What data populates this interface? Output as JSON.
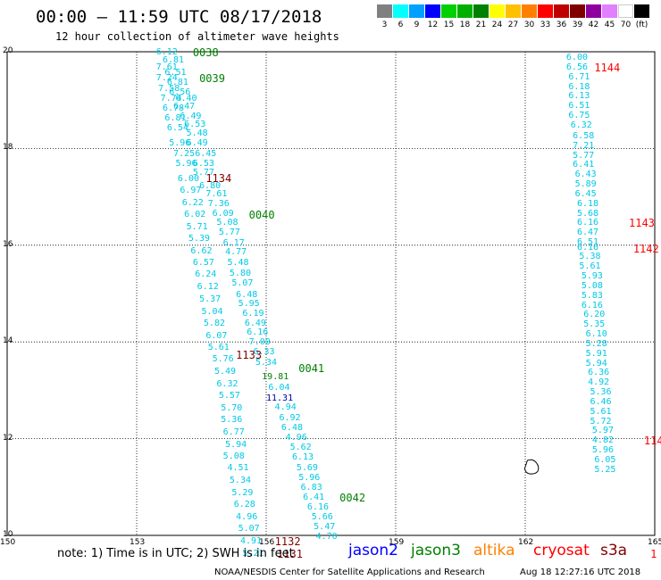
{
  "header": {
    "title": "00:00 — 11:59 UTC 08/17/2018",
    "subtitle": "12 hour collection of altimeter wave heights"
  },
  "colorbar": {
    "swatches": [
      "#808080",
      "#00ffff",
      "#00a0ff",
      "#0000ff",
      "#00d000",
      "#00b000",
      "#008000",
      "#ffff00",
      "#ffc000",
      "#ff8000",
      "#ff0000",
      "#c00000",
      "#800000",
      "#9000a0",
      "#e080ff",
      "#ffffff",
      "#000000"
    ],
    "labels": [
      "3",
      "6",
      "9",
      "12",
      "15",
      "18",
      "21",
      "24",
      "27",
      "30",
      "33",
      "36",
      "39",
      "42",
      "45",
      "70",
      "(ft)"
    ]
  },
  "axes": {
    "y_ticks": [
      "20",
      "18",
      "16",
      "14",
      "12",
      "10"
    ],
    "x_ticks": [
      "150",
      "153",
      "156",
      "159",
      "162",
      "165"
    ],
    "lat_range": [
      10,
      20
    ],
    "lon_range": [
      150,
      165
    ]
  },
  "colors": {
    "grid": "#000000",
    "point_value": "#00c8e6",
    "jason2": "#0000ff",
    "jason3": "#008000",
    "altika": "#ff8000",
    "cryosat": "#ff0000",
    "s3a": "#800000"
  },
  "tracks": [
    {
      "points": [
        {
          "v": "6.12",
          "lon": 153.45,
          "lat": 19.98
        },
        {
          "v": "6.81",
          "lon": 153.6,
          "lat": 19.82
        },
        {
          "v": "7.61",
          "lon": 153.45,
          "lat": 19.67
        },
        {
          "v": "6.51",
          "lon": 153.65,
          "lat": 19.55
        },
        {
          "v": "7.24",
          "lon": 153.45,
          "lat": 19.45
        },
        {
          "v": "6.81",
          "lon": 153.7,
          "lat": 19.35
        },
        {
          "v": "7.58",
          "lon": 153.5,
          "lat": 19.23
        },
        {
          "v": "6.56",
          "lon": 153.75,
          "lat": 19.15
        },
        {
          "v": "7.74",
          "lon": 153.55,
          "lat": 19.03
        },
        {
          "v": "6.40",
          "lon": 153.9,
          "lat": 19.03
        },
        {
          "v": "6.78",
          "lon": 153.6,
          "lat": 18.82
        },
        {
          "v": "6.47",
          "lon": 153.85,
          "lat": 18.85
        },
        {
          "v": "6.81",
          "lon": 153.65,
          "lat": 18.62
        },
        {
          "v": "6.49",
          "lon": 154.0,
          "lat": 18.65
        },
        {
          "v": "6.54",
          "lon": 153.7,
          "lat": 18.42
        },
        {
          "v": "6.53",
          "lon": 154.1,
          "lat": 18.48
        },
        {
          "v": "5.48",
          "lon": 154.15,
          "lat": 18.3
        },
        {
          "v": "5.96",
          "lon": 153.75,
          "lat": 18.1
        },
        {
          "v": "6.49",
          "lon": 154.15,
          "lat": 18.1
        },
        {
          "v": "7.25",
          "lon": 153.85,
          "lat": 17.88
        },
        {
          "v": "6.45",
          "lon": 154.35,
          "lat": 17.88
        },
        {
          "v": "5.96",
          "lon": 153.9,
          "lat": 17.67
        },
        {
          "v": "6.53",
          "lon": 154.3,
          "lat": 17.68
        },
        {
          "v": "6.00",
          "lon": 153.95,
          "lat": 17.37
        },
        {
          "v": "5.77",
          "lon": 154.3,
          "lat": 17.5
        },
        {
          "v": "6.97",
          "lon": 154.0,
          "lat": 17.13
        },
        {
          "v": "6.80",
          "lon": 154.45,
          "lat": 17.22
        },
        {
          "v": "6.22",
          "lon": 154.05,
          "lat": 16.87
        },
        {
          "v": "7.61",
          "lon": 154.6,
          "lat": 17.04
        },
        {
          "v": "7.36",
          "lon": 154.65,
          "lat": 16.85
        },
        {
          "v": "6.02",
          "lon": 154.1,
          "lat": 16.62
        },
        {
          "v": "6.09",
          "lon": 154.75,
          "lat": 16.65
        },
        {
          "v": "5.71",
          "lon": 154.15,
          "lat": 16.37
        },
        {
          "v": "5.08",
          "lon": 154.85,
          "lat": 16.45
        },
        {
          "v": "5.39",
          "lon": 154.2,
          "lat": 16.12
        },
        {
          "v": "5.77",
          "lon": 154.9,
          "lat": 16.25
        },
        {
          "v": "6.17",
          "lon": 155.0,
          "lat": 16.03
        },
        {
          "v": "6.62",
          "lon": 154.25,
          "lat": 15.87
        },
        {
          "v": "4.77",
          "lon": 155.05,
          "lat": 15.85
        },
        {
          "v": "6.57",
          "lon": 154.3,
          "lat": 15.63
        },
        {
          "v": "5.48",
          "lon": 155.1,
          "lat": 15.63
        },
        {
          "v": "6.24",
          "lon": 154.35,
          "lat": 15.38
        },
        {
          "v": "5.80",
          "lon": 155.15,
          "lat": 15.4
        },
        {
          "v": "6.12",
          "lon": 154.4,
          "lat": 15.13
        },
        {
          "v": "5.07",
          "lon": 155.2,
          "lat": 15.2
        },
        {
          "v": "5.37",
          "lon": 154.45,
          "lat": 14.88
        },
        {
          "v": "6.48",
          "lon": 155.3,
          "lat": 14.97
        },
        {
          "v": "5.04",
          "lon": 154.5,
          "lat": 14.62
        },
        {
          "v": "5.95",
          "lon": 155.35,
          "lat": 14.77
        },
        {
          "v": "6.19",
          "lon": 155.45,
          "lat": 14.57
        },
        {
          "v": "5.82",
          "lon": 154.55,
          "lat": 14.37
        },
        {
          "v": "6.49",
          "lon": 155.5,
          "lat": 14.37
        },
        {
          "v": "6.07",
          "lon": 154.6,
          "lat": 14.12
        },
        {
          "v": "6.16",
          "lon": 155.55,
          "lat": 14.18
        },
        {
          "v": "7.00",
          "lon": 155.6,
          "lat": 13.98
        },
        {
          "v": "5.61",
          "lon": 154.65,
          "lat": 13.87
        },
        {
          "v": "6.33",
          "lon": 155.7,
          "lat": 13.78
        },
        {
          "v": "5.76",
          "lon": 154.75,
          "lat": 13.63
        },
        {
          "v": "5.34",
          "lon": 155.75,
          "lat": 13.57
        },
        {
          "v": "5.49",
          "lon": 154.8,
          "lat": 13.38
        },
        {
          "v": "6.32",
          "lon": 154.85,
          "lat": 13.12
        },
        {
          "v": "6.04",
          "lon": 156.05,
          "lat": 13.05
        },
        {
          "v": "5.57",
          "lon": 154.9,
          "lat": 12.87
        },
        {
          "v": "5.70",
          "lon": 154.95,
          "lat": 12.62
        },
        {
          "v": "4.94",
          "lon": 156.2,
          "lat": 12.63
        },
        {
          "v": "5.36",
          "lon": 154.95,
          "lat": 12.38
        },
        {
          "v": "6.92",
          "lon": 156.3,
          "lat": 12.42
        },
        {
          "v": "6.77",
          "lon": 155.0,
          "lat": 12.12
        },
        {
          "v": "6.48",
          "lon": 156.35,
          "lat": 12.22
        },
        {
          "v": "5.94",
          "lon": 155.05,
          "lat": 11.87
        },
        {
          "v": "4.96",
          "lon": 156.45,
          "lat": 12.02
        },
        {
          "v": "5.08",
          "lon": 155.0,
          "lat": 11.63
        },
        {
          "v": "5.62",
          "lon": 156.55,
          "lat": 11.8
        },
        {
          "v": "4.51",
          "lon": 155.1,
          "lat": 11.38
        },
        {
          "v": "6.13",
          "lon": 156.6,
          "lat": 11.6
        },
        {
          "v": "5.34",
          "lon": 155.15,
          "lat": 11.12
        },
        {
          "v": "5.69",
          "lon": 156.7,
          "lat": 11.38
        },
        {
          "v": "5.96",
          "lon": 156.75,
          "lat": 11.18
        },
        {
          "v": "5.29",
          "lon": 155.2,
          "lat": 10.87
        },
        {
          "v": "6.83",
          "lon": 156.8,
          "lat": 10.97
        },
        {
          "v": "6.28",
          "lon": 155.25,
          "lat": 10.62
        },
        {
          "v": "6.41",
          "lon": 156.85,
          "lat": 10.77
        },
        {
          "v": "4.96",
          "lon": 155.3,
          "lat": 10.37
        },
        {
          "v": "6.16",
          "lon": 156.95,
          "lat": 10.57
        },
        {
          "v": "5.07",
          "lon": 155.35,
          "lat": 10.13
        },
        {
          "v": "5.66",
          "lon": 157.05,
          "lat": 10.37
        },
        {
          "v": "4.91",
          "lon": 155.4,
          "lat": 9.88
        },
        {
          "v": "5.47",
          "lon": 157.1,
          "lat": 10.17
        },
        {
          "v": "5.21",
          "lon": 155.45,
          "lat": 9.62
        },
        {
          "v": "4.70",
          "lon": 157.15,
          "lat": 9.97
        }
      ]
    },
    {
      "points": [
        {
          "v": "19.81",
          "lon": 155.9,
          "lat": 13.27
        },
        {
          "v": "11.31",
          "lon": 156.0,
          "lat": 12.83
        }
      ]
    },
    {
      "points": [
        {
          "v": "6.00",
          "lon": 162.95,
          "lat": 19.87
        },
        {
          "v": "6.56",
          "lon": 162.95,
          "lat": 19.67
        },
        {
          "v": "6.71",
          "lon": 163.0,
          "lat": 19.47
        },
        {
          "v": "6.18",
          "lon": 163.0,
          "lat": 19.27
        },
        {
          "v": "6.13",
          "lon": 163.0,
          "lat": 19.07
        },
        {
          "v": "6.51",
          "lon": 163.0,
          "lat": 18.87
        },
        {
          "v": "6.75",
          "lon": 163.0,
          "lat": 18.67
        },
        {
          "v": "6.32",
          "lon": 163.05,
          "lat": 18.47
        },
        {
          "v": "6.58",
          "lon": 163.1,
          "lat": 18.25
        },
        {
          "v": "7.21",
          "lon": 163.1,
          "lat": 18.05
        },
        {
          "v": "5.77",
          "lon": 163.1,
          "lat": 17.85
        },
        {
          "v": "6.41",
          "lon": 163.1,
          "lat": 17.65
        },
        {
          "v": "6.43",
          "lon": 163.15,
          "lat": 17.45
        },
        {
          "v": "5.89",
          "lon": 163.15,
          "lat": 17.25
        },
        {
          "v": "6.45",
          "lon": 163.15,
          "lat": 17.05
        },
        {
          "v": "6.18",
          "lon": 163.2,
          "lat": 16.85
        },
        {
          "v": "5.68",
          "lon": 163.2,
          "lat": 16.65
        },
        {
          "v": "6.16",
          "lon": 163.2,
          "lat": 16.45
        },
        {
          "v": "6.47",
          "lon": 163.2,
          "lat": 16.25
        },
        {
          "v": "6.51",
          "lon": 163.2,
          "lat": 16.05
        },
        {
          "v": "6.16",
          "lon": 163.2,
          "lat": 15.95
        },
        {
          "v": "5.38",
          "lon": 163.25,
          "lat": 15.75
        },
        {
          "v": "5.61",
          "lon": 163.25,
          "lat": 15.55
        },
        {
          "v": "5.93",
          "lon": 163.3,
          "lat": 15.35
        },
        {
          "v": "5.08",
          "lon": 163.3,
          "lat": 15.15
        },
        {
          "v": "5.83",
          "lon": 163.3,
          "lat": 14.95
        },
        {
          "v": "6.16",
          "lon": 163.3,
          "lat": 14.75
        },
        {
          "v": "6.20",
          "lon": 163.35,
          "lat": 14.55
        },
        {
          "v": "5.35",
          "lon": 163.35,
          "lat": 14.35
        },
        {
          "v": "6.10",
          "lon": 163.4,
          "lat": 14.15
        },
        {
          "v": "5.28",
          "lon": 163.4,
          "lat": 13.95
        },
        {
          "v": "5.91",
          "lon": 163.4,
          "lat": 13.75
        },
        {
          "v": "5.94",
          "lon": 163.4,
          "lat": 13.55
        },
        {
          "v": "6.36",
          "lon": 163.45,
          "lat": 13.35
        },
        {
          "v": "4.92",
          "lon": 163.45,
          "lat": 13.15
        },
        {
          "v": "5.36",
          "lon": 163.5,
          "lat": 12.95
        },
        {
          "v": "6.46",
          "lon": 163.5,
          "lat": 12.75
        },
        {
          "v": "5.61",
          "lon": 163.5,
          "lat": 12.55
        },
        {
          "v": "5.72",
          "lon": 163.5,
          "lat": 12.35
        },
        {
          "v": "5.97",
          "lon": 163.55,
          "lat": 12.15
        },
        {
          "v": "4.82",
          "lon": 163.55,
          "lat": 11.95
        },
        {
          "v": "5.96",
          "lon": 163.55,
          "lat": 11.75
        },
        {
          "v": "6.05",
          "lon": 163.6,
          "lat": 11.55
        },
        {
          "v": "5.25",
          "lon": 163.6,
          "lat": 11.35
        }
      ]
    }
  ],
  "pass_labels": [
    {
      "text": "0038",
      "sat": "jason3",
      "lon": 154.3,
      "lat": 19.98
    },
    {
      "text": "0039",
      "sat": "jason3",
      "lon": 154.45,
      "lat": 19.45
    },
    {
      "text": "1134",
      "sat": "s3a",
      "lon": 154.6,
      "lat": 17.38
    },
    {
      "text": "0040",
      "sat": "jason3",
      "lon": 155.6,
      "lat": 16.62
    },
    {
      "text": "1133",
      "sat": "s3a",
      "lon": 155.3,
      "lat": 13.72
    },
    {
      "text": "0041",
      "sat": "jason3",
      "lon": 156.75,
      "lat": 13.45
    },
    {
      "text": "0042",
      "sat": "jason3",
      "lon": 157.7,
      "lat": 10.77
    },
    {
      "text": "1132",
      "sat": "s3a",
      "lon": 156.2,
      "lat": 9.88
    },
    {
      "text": "1131",
      "sat": "s3a",
      "lon": 156.25,
      "lat": 9.62
    },
    {
      "text": "1144",
      "sat": "cryosat",
      "lon": 163.6,
      "lat": 19.67
    },
    {
      "text": "1143",
      "sat": "cryosat",
      "lon": 164.4,
      "lat": 16.45
    },
    {
      "text": "1142",
      "sat": "cryosat",
      "lon": 164.5,
      "lat": 15.92
    },
    {
      "text": "114",
      "sat": "cryosat",
      "lon": 164.75,
      "lat": 11.95
    },
    {
      "text": "1",
      "sat": "cryosat",
      "lon": 164.9,
      "lat": 9.62
    }
  ],
  "footer": {
    "note": "note:  1) Time is in UTC;  2) SWH is in feet",
    "satellites": [
      {
        "label": "jason2",
        "color": "#0000ff"
      },
      {
        "label": "jason3",
        "color": "#008000"
      },
      {
        "label": "altika",
        "color": "#ff8000"
      },
      {
        "label": "cryosat",
        "color": "#ff0000"
      },
      {
        "label": "s3a",
        "color": "#800000"
      }
    ],
    "credit": "NOAA/NESDIS Center for Satellite Applications and Research",
    "timestamp": "Aug 18 12:27:16 UTC 2018"
  }
}
